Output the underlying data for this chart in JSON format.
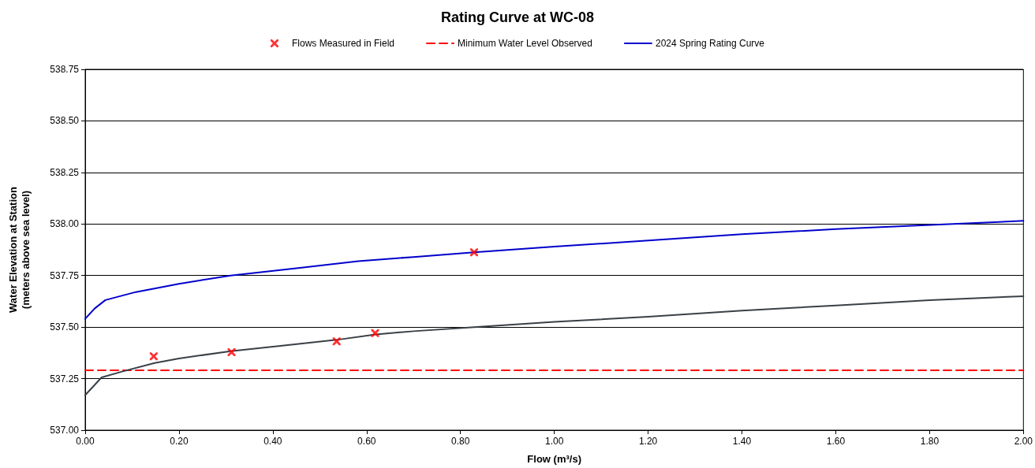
{
  "chart_data": {
    "type": "line",
    "title": "Rating Curve at WC-08",
    "xlabel": "Flow (m³/s)",
    "ylabel": "Water Elevation at Station\n(meters above sea level)",
    "xlim": [
      0,
      2
    ],
    "ylim": [
      537,
      538.75
    ],
    "xticks": [
      {
        "value": 0,
        "label": "0.00"
      },
      {
        "value": 0.2,
        "label": "0.20"
      },
      {
        "value": 0.4,
        "label": "0.40"
      },
      {
        "value": 0.6,
        "label": "0.60"
      },
      {
        "value": 0.8,
        "label": "0.80"
      },
      {
        "value": 1,
        "label": "1.00"
      },
      {
        "value": 1.2,
        "label": "1.20"
      },
      {
        "value": 1.4,
        "label": "1.40"
      },
      {
        "value": 1.6,
        "label": "1.60"
      },
      {
        "value": 1.8,
        "label": "1.80"
      },
      {
        "value": 2,
        "label": "2.00"
      }
    ],
    "yticks": [
      {
        "value": 537,
        "label": "537.00"
      },
      537.25,
      {
        "value": 537.5,
        "label": "537.50"
      },
      537.75,
      {
        "value": 538,
        "label": "538.00"
      },
      538.25,
      {
        "value": 538.5,
        "label": "538.50"
      },
      538.75
    ],
    "grid": "y",
    "legend": "top",
    "marker": "none",
    "line_style": "solid",
    "series": [
      {
        "name": "Flows Measured in Field",
        "type": "scatter",
        "marker": "cross",
        "color": "#ff0000",
        "x": [
          0.146,
          0.312,
          0.536,
          0.618,
          0.829
        ],
        "values": [
          537.358,
          537.378,
          537.431,
          537.471,
          537.863
        ]
      },
      {
        "name": "Minimum Water Level Observed",
        "type": "line",
        "line_style": "dashed",
        "color": "#ff0000",
        "x": [
          0,
          2
        ],
        "values": [
          537.29,
          537.29
        ]
      },
      {
        "name": "2024 Spring Rating Curve",
        "type": "line",
        "color": "#0000cc",
        "x": [
          0,
          0.02,
          0.043,
          0.108,
          0.2,
          0.31,
          0.45,
          0.582,
          0.7,
          0.829,
          1.0,
          1.2,
          1.4,
          1.6,
          1.85,
          2.0
        ],
        "values": [
          537.54,
          537.59,
          537.631,
          537.67,
          537.71,
          537.75,
          537.785,
          537.82,
          537.84,
          537.863,
          537.89,
          537.92,
          537.95,
          537.975,
          538.0,
          538.015
        ]
      },
      {
        "type": "line",
        "color": "#3a4048",
        "x": [
          0,
          0.035,
          0.08,
          0.148,
          0.2,
          0.31,
          0.42,
          0.536,
          0.619,
          0.7,
          0.829,
          1.0,
          1.2,
          1.4,
          1.6,
          1.8,
          2.0
        ],
        "values": [
          537.17,
          537.256,
          537.285,
          537.326,
          537.348,
          537.383,
          537.41,
          537.438,
          537.464,
          537.48,
          537.5,
          537.525,
          537.55,
          537.58,
          537.605,
          537.63,
          537.65
        ]
      }
    ]
  }
}
